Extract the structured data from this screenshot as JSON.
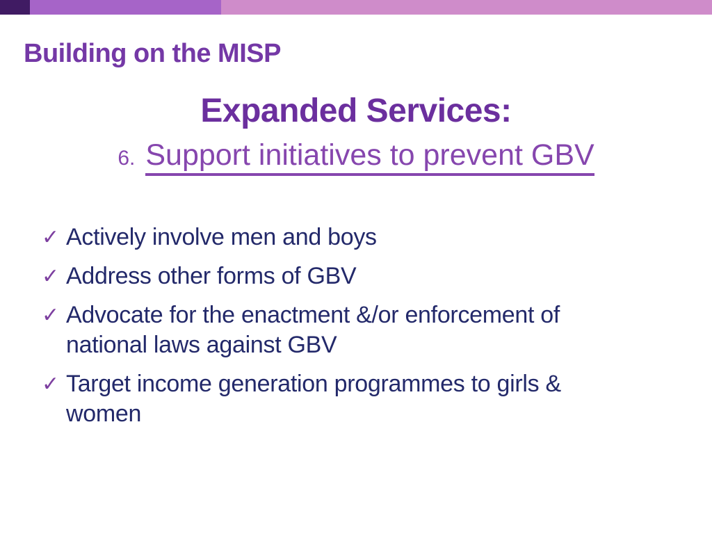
{
  "theme": {
    "bar-dark": "#401b63",
    "bar-medium": "#a664c8",
    "bar-light": "#cf8cca",
    "title-color": "#7438a6",
    "heading-color": "#6b2f9e",
    "subheading-color": "#8646ae",
    "body-color": "#23296a",
    "check-color": "#7d3fa0",
    "background": "#ffffff"
  },
  "slide": {
    "title": "Building on the MISP",
    "heading": "Expanded Services:",
    "subheading_number": "6.",
    "subheading_text": "Support initiatives to prevent GBV",
    "bullet_marker": "✓",
    "bullets": [
      "Actively involve men and boys",
      "Address other forms of GBV",
      "Advocate for the enactment &/or enforcement of\nnational laws against GBV",
      "Target income generation programmes to girls &\nwomen"
    ]
  }
}
